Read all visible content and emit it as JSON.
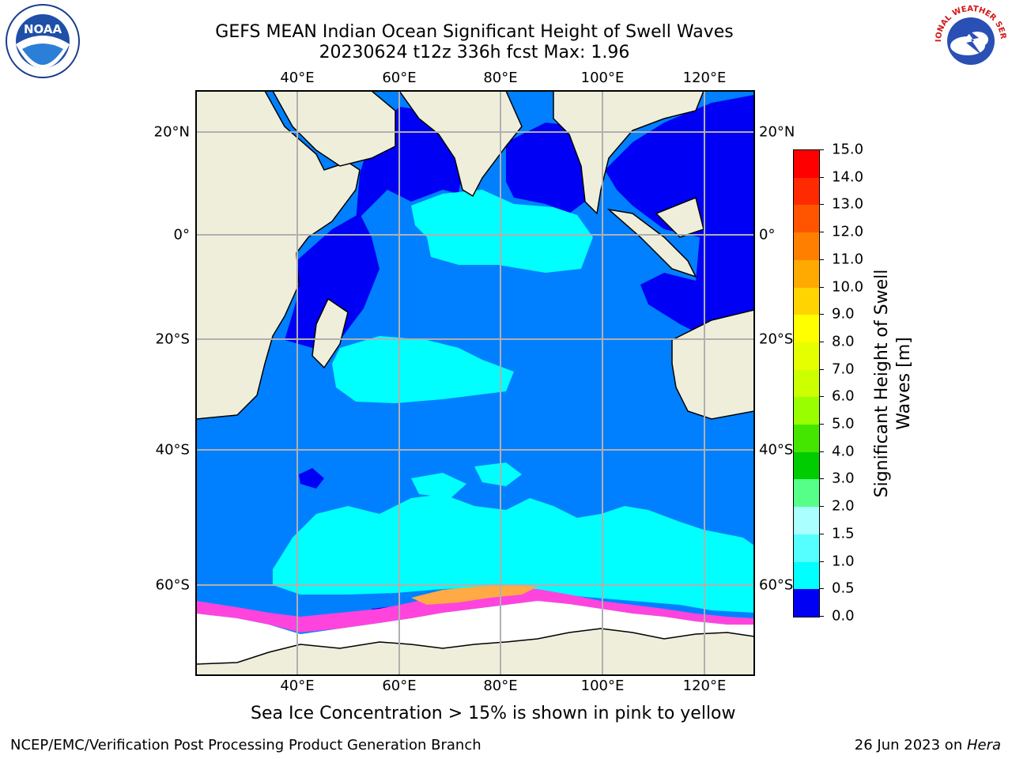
{
  "title": {
    "line1": "GEFS MEAN Indian Ocean Significant Height of Swell Waves",
    "line2": "20230624 t12z 336h fcst   Max: 1.96"
  },
  "map": {
    "lon_ticks": [
      "40°E",
      "60°E",
      "80°E",
      "100°E",
      "120°E"
    ],
    "lat_ticks": [
      "20°N",
      "0°",
      "20°S",
      "40°S",
      "60°S"
    ],
    "colors": {
      "land": "#efeedb",
      "ocean_dark": "#0000f5",
      "ocean_mid": "#0080ff",
      "ocean_cyan": "#00ffff",
      "sea_ice_fill": "#ffffff",
      "ice_pink": "#ff44dd",
      "ice_orange": "#ffaa44",
      "grid": "#b0b0b0"
    }
  },
  "colorbar": {
    "label": "Significant Height of Swell Waves [m]",
    "label_line1": "Significant Height of Swell",
    "label_line2": "Waves [m]",
    "ticks": [
      "15.0",
      "14.0",
      "13.0",
      "12.0",
      "11.0",
      "10.0",
      "9.0",
      "8.0",
      "7.0",
      "6.0",
      "5.0",
      "4.0",
      "3.0",
      "2.0",
      "1.5",
      "1.0",
      "0.5",
      "0.0"
    ],
    "colors": [
      "#ff0000",
      "#ff2a00",
      "#ff5500",
      "#ff8000",
      "#ffaa00",
      "#ffd400",
      "#ffff00",
      "#e6ff00",
      "#ccff00",
      "#99ff00",
      "#44e600",
      "#00cc00",
      "#55ff88",
      "#aaffff",
      "#55ffff",
      "#00ffff",
      "#0080ff",
      "#0000f5"
    ]
  },
  "footnote": "Sea Ice Concentration > 15% is shown in pink to yellow",
  "credits": {
    "left": "NCEP/EMC/Verification Post Processing Product Generation Branch",
    "right_date": "26 Jun 2023 on ",
    "right_machine": "Hera"
  },
  "logos": {
    "noaa_text": "NOAA",
    "nws_text": "NATIONAL WEATHER SERVICE"
  }
}
